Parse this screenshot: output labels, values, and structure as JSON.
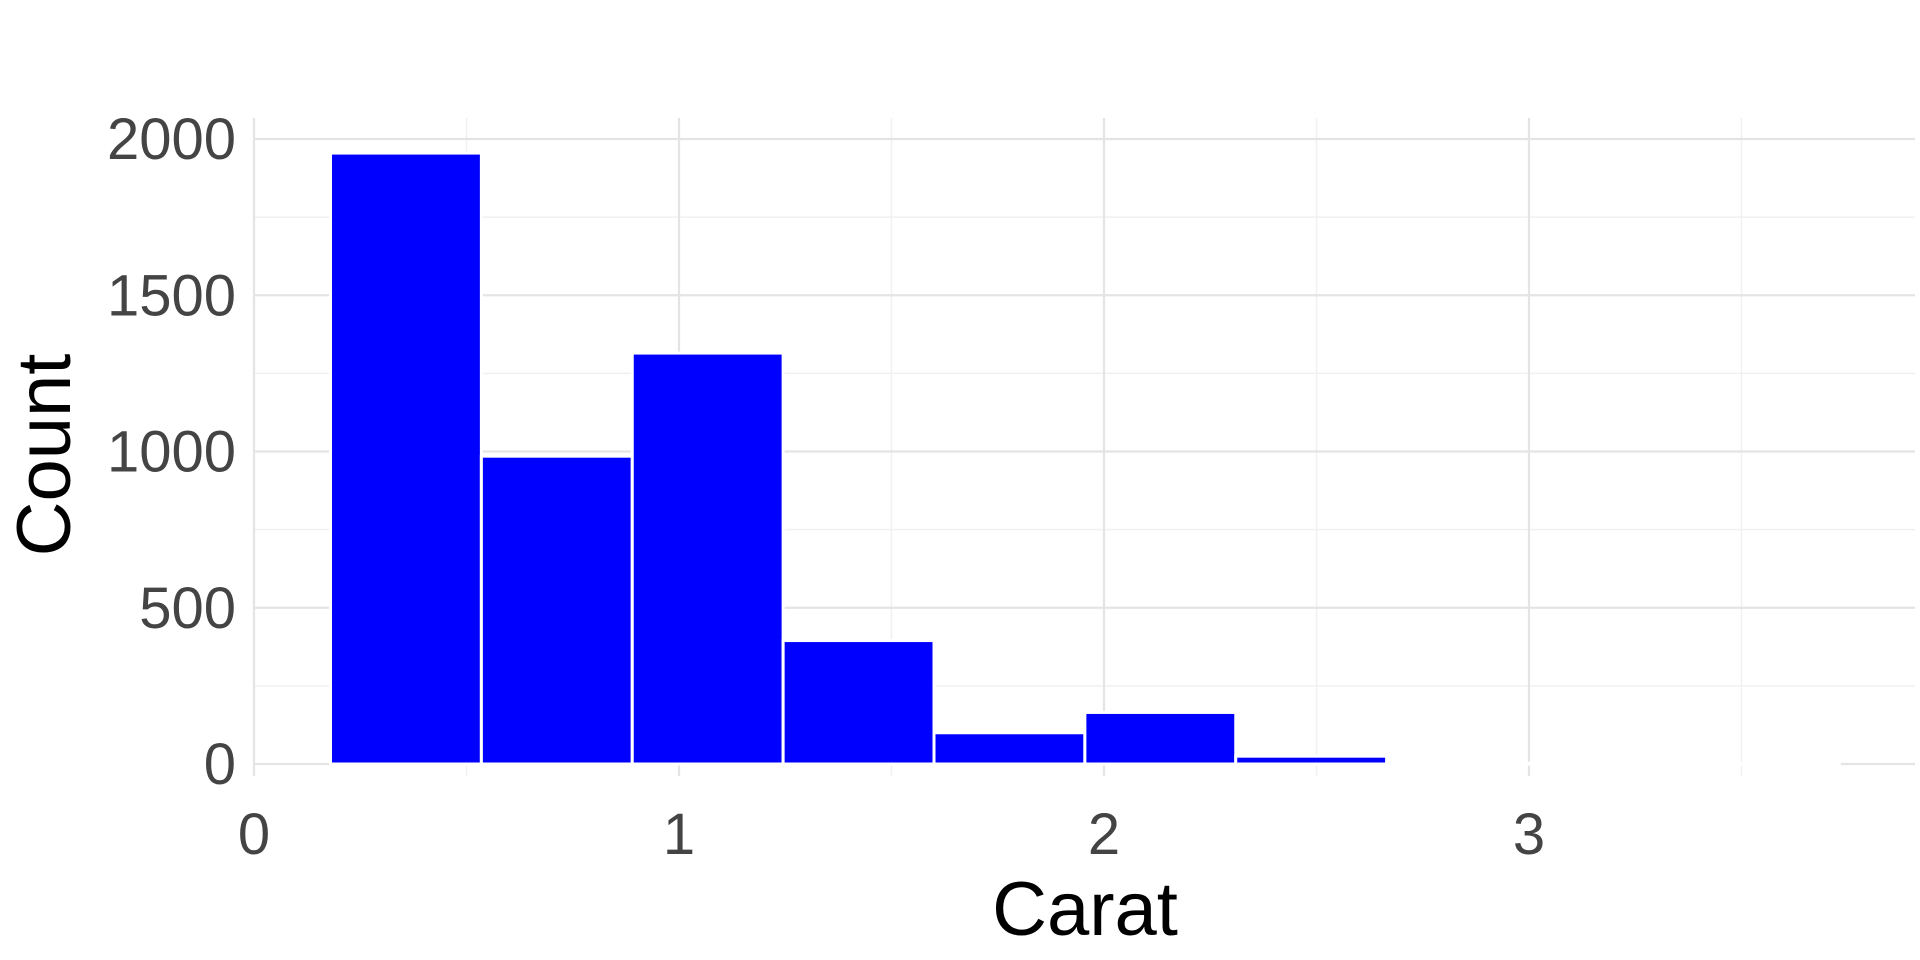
{
  "chart_data": {
    "type": "bar",
    "title": "",
    "xlabel": "Carat",
    "ylabel": "Count",
    "xlim": [
      0,
      3.9
    ],
    "ylim": [
      0,
      2000
    ],
    "x_ticks": [
      0,
      1,
      2,
      3
    ],
    "x_tick_labels": [
      "0",
      "1",
      "2",
      "3"
    ],
    "y_ticks": [
      0,
      500,
      1000,
      1500,
      2000
    ],
    "y_tick_labels": [
      "0",
      "500",
      "1000",
      "1500",
      "2000"
    ],
    "grid": true,
    "legend": "none",
    "bar_color": "#0000ff",
    "bins": [
      {
        "x0": 0.18,
        "x1": 0.535,
        "count": 1955
      },
      {
        "x0": 0.535,
        "x1": 0.89,
        "count": 985
      },
      {
        "x0": 0.89,
        "x1": 1.245,
        "count": 1315
      },
      {
        "x0": 1.245,
        "x1": 1.6,
        "count": 395
      },
      {
        "x0": 1.6,
        "x1": 1.955,
        "count": 100
      },
      {
        "x0": 1.955,
        "x1": 2.31,
        "count": 165
      },
      {
        "x0": 2.31,
        "x1": 2.665,
        "count": 25
      },
      {
        "x0": 2.665,
        "x1": 3.02,
        "count": 2
      },
      {
        "x0": 3.02,
        "x1": 3.375,
        "count": 1
      },
      {
        "x0": 3.375,
        "x1": 3.73,
        "count": 1
      }
    ]
  }
}
